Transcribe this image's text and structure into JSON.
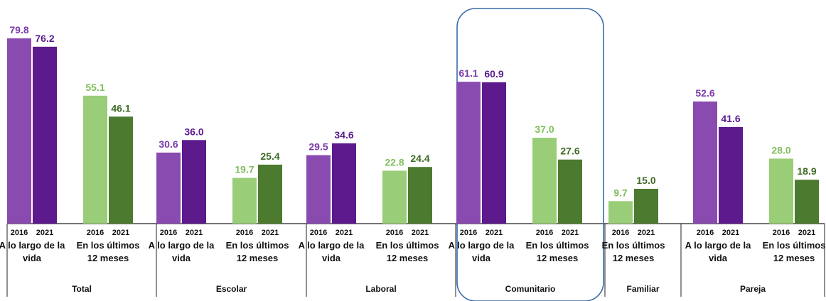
{
  "chart_data": {
    "type": "bar",
    "title": "",
    "xlabel": "",
    "ylabel": "",
    "ylim": [
      0,
      85
    ],
    "grid": false,
    "legend": "none",
    "groups": [
      {
        "name": "Total",
        "subgroups": [
          {
            "label": "A lo largo de la vida",
            "kind": "lifetime",
            "bars": [
              {
                "year": "2016",
                "value": 79.8
              },
              {
                "year": "2021",
                "value": 76.2
              }
            ]
          },
          {
            "label": "En los últimos 12 meses",
            "kind": "recent",
            "bars": [
              {
                "year": "2016",
                "value": 55.1
              },
              {
                "year": "2021",
                "value": 46.1
              }
            ]
          }
        ]
      },
      {
        "name": "Escolar",
        "subgroups": [
          {
            "label": "A lo largo de la vida",
            "kind": "lifetime",
            "bars": [
              {
                "year": "2016",
                "value": 30.6
              },
              {
                "year": "2021",
                "value": 36.0
              }
            ]
          },
          {
            "label": "En los últimos 12 meses",
            "kind": "recent",
            "bars": [
              {
                "year": "2016",
                "value": 19.7
              },
              {
                "year": "2021",
                "value": 25.4
              }
            ]
          }
        ]
      },
      {
        "name": "Laboral",
        "subgroups": [
          {
            "label": "A lo largo de la vida",
            "kind": "lifetime",
            "bars": [
              {
                "year": "2016",
                "value": 29.5
              },
              {
                "year": "2021",
                "value": 34.6
              }
            ]
          },
          {
            "label": "En los últimos 12 meses",
            "kind": "recent",
            "bars": [
              {
                "year": "2016",
                "value": 22.8
              },
              {
                "year": "2021",
                "value": 24.4
              }
            ]
          }
        ]
      },
      {
        "name": "Comunitario",
        "highlighted": true,
        "subgroups": [
          {
            "label": "A lo largo de la vida",
            "kind": "lifetime",
            "bars": [
              {
                "year": "2016",
                "value": 61.1
              },
              {
                "year": "2021",
                "value": 60.9
              }
            ]
          },
          {
            "label": "En los últimos 12 meses",
            "kind": "recent",
            "bars": [
              {
                "year": "2016",
                "value": 37.0
              },
              {
                "year": "2021",
                "value": 27.6
              }
            ]
          }
        ]
      },
      {
        "name": "Familiar",
        "subgroups": [
          {
            "label": "En los últimos 12 meses",
            "kind": "recent",
            "bars": [
              {
                "year": "2016",
                "value": 9.7
              },
              {
                "year": "2021",
                "value": 15.0
              }
            ]
          }
        ]
      },
      {
        "name": "Pareja",
        "subgroups": [
          {
            "label": "A lo largo de la vida",
            "kind": "lifetime",
            "bars": [
              {
                "year": "2016",
                "value": 52.6
              },
              {
                "year": "2021",
                "value": 41.6
              }
            ]
          },
          {
            "label": "En los últimos 12 meses",
            "kind": "recent",
            "bars": [
              {
                "year": "2016",
                "value": 28.0
              },
              {
                "year": "2021",
                "value": 18.9
              }
            ]
          }
        ]
      }
    ],
    "colors": {
      "lifetime": {
        "2016": "#8a4bb0",
        "2021": "#5c1a8c"
      },
      "recent": {
        "2016": "#9acd78",
        "2021": "#4c7a2e"
      },
      "value_label": {
        "lifetime": "#7a3aaa",
        "recent": "#7fbf5a"
      },
      "highlight_box": "#3a6aa8"
    }
  }
}
